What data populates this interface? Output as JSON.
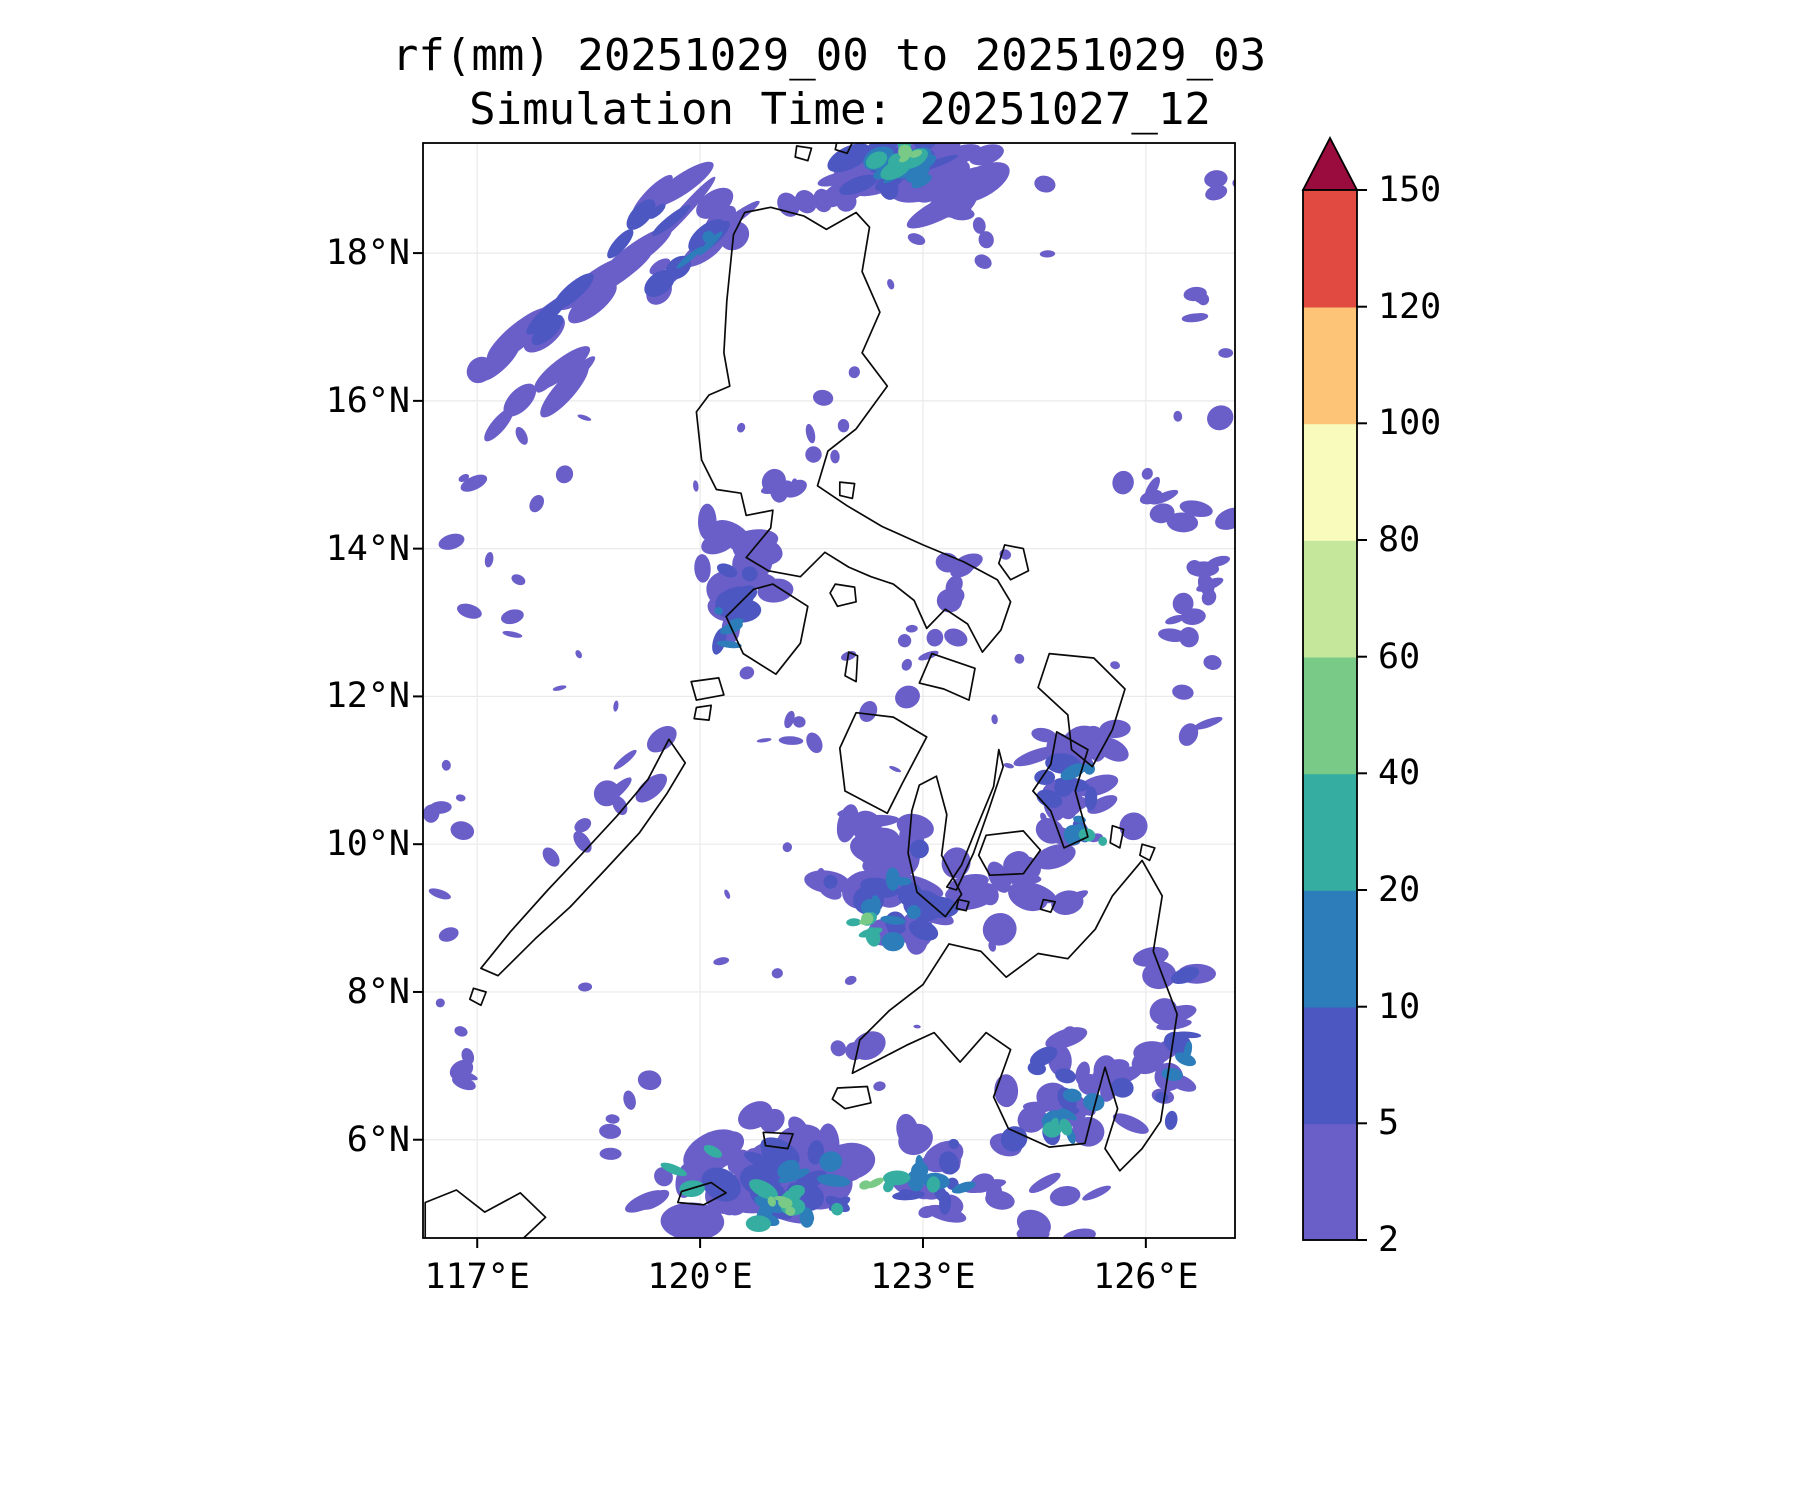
{
  "figure": {
    "title": "rf(mm) 20251029_00 to 20251029_03",
    "subtitle": "Simulation Time: 20251027_12"
  },
  "axes": {
    "lat_tick_labels": [
      "18°N",
      "16°N",
      "14°N",
      "12°N",
      "10°N",
      "8°N",
      "6°N"
    ],
    "lat_tick_values": [
      18,
      16,
      14,
      12,
      10,
      8,
      6
    ],
    "lon_tick_labels": [
      "117°E",
      "120°E",
      "123°E",
      "126°E"
    ],
    "lon_tick_values": [
      117,
      120,
      123,
      126
    ]
  },
  "colorbar": {
    "tick_labels": [
      "2",
      "5",
      "10",
      "20",
      "40",
      "60",
      "80",
      "100",
      "120",
      "150"
    ],
    "levels": [
      2,
      5,
      10,
      20,
      40,
      60,
      80,
      100,
      120,
      150
    ],
    "segment_colors": [
      "#6a5ec9",
      "#4c57c2",
      "#2d7dbb",
      "#35ada1",
      "#79c987",
      "#c5e79c",
      "#f8fbbc",
      "#fdc377",
      "#e04a41"
    ],
    "over_arrow_color": "#990c3d",
    "extend": "max",
    "unit": "mm"
  },
  "chart_data": {
    "type": "heatmap",
    "title": "rf(mm) 20251029_00 to 20251029_03",
    "subtitle": "Simulation Time: 20251027_12",
    "variable": "rf",
    "unit": "mm",
    "x_ticks": [
      "117°E",
      "120°E",
      "123°E",
      "126°E"
    ],
    "y_ticks": [
      "18°N",
      "16°N",
      "14°N",
      "12°N",
      "10°N",
      "8°N",
      "6°N"
    ],
    "xlim": [
      116.27,
      127.2
    ],
    "ylim": [
      4.67,
      19.49
    ],
    "color_levels": [
      2,
      5,
      10,
      20,
      40,
      60,
      80,
      100,
      120,
      150
    ],
    "legend_position": "right colorbar with upward over-arrow",
    "grid": "faint lat/lon graticule",
    "basemap": "Philippines coastlines, black outline, white background",
    "field_summary": [
      {
        "area": "northeast of Luzon (122-124.5E, 18.3-19.5N)",
        "values_mm": "2-40 with isolated 40-60 cores"
      },
      {
        "area": "diagonal rain bands over sea NW of Luzon (117-120.5E, 15-19.3N)",
        "values_mm": "2-10"
      },
      {
        "area": "west of Mindoro / Panay (120-121E, 12-14.5N)",
        "values_mm": "2-20"
      },
      {
        "area": "central Visayas (121.5-123.5E, 8.5-10.5N)",
        "values_mm": "2-40 with isolated 40-60 cores"
      },
      {
        "area": "Samar-Leyte and seas east of Visayas (124.5-127E, 9-12N)",
        "values_mm": "2-20"
      },
      {
        "area": "Mindanao, Sulu and Celebes seas (119-126.5E, 4.7-7.5N)",
        "values_mm": "2-40 with isolated 40-60 cores"
      },
      {
        "area": "remaining interior Luzon and central sea lanes",
        "values_mm": "below 2 (no shading)"
      }
    ]
  }
}
